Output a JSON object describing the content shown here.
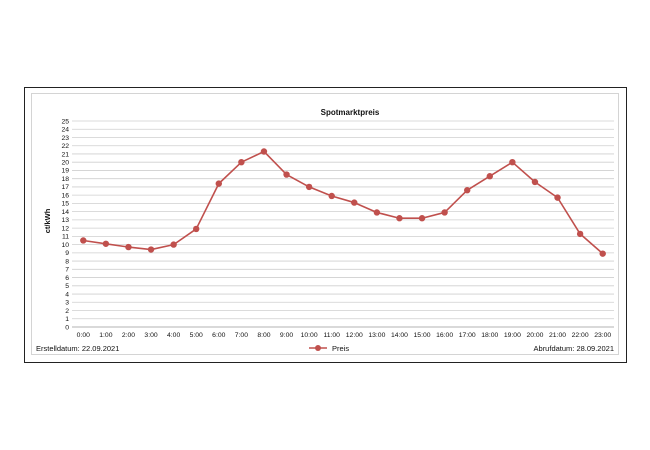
{
  "footer": {
    "created": "Erstelldatum: 22.09.2021",
    "retrieved": "Abrufdatum: 28.09.2021"
  },
  "chart_data": {
    "type": "line",
    "title": "Spotmarktpreis",
    "xlabel": "",
    "ylabel": "ct/kWh",
    "ylim": [
      0,
      25
    ],
    "yticks": [
      0,
      1,
      2,
      3,
      4,
      5,
      6,
      7,
      8,
      9,
      10,
      11,
      12,
      13,
      14,
      15,
      16,
      17,
      18,
      19,
      20,
      21,
      22,
      23,
      24,
      25
    ],
    "grid": true,
    "legend_position": "bottom-center",
    "color": "#c0504d",
    "categories": [
      "0:00",
      "1:00",
      "2:00",
      "3:00",
      "4:00",
      "5:00",
      "6:00",
      "7:00",
      "8:00",
      "9:00",
      "10:00",
      "11:00",
      "12:00",
      "13:00",
      "14:00",
      "15:00",
      "16:00",
      "17:00",
      "18:00",
      "19:00",
      "20:00",
      "21:00",
      "22:00",
      "23:00"
    ],
    "series": [
      {
        "name": "Preis",
        "values": [
          10.5,
          10.1,
          9.7,
          9.4,
          10.0,
          11.9,
          17.4,
          20.0,
          21.3,
          18.5,
          17.0,
          15.9,
          15.1,
          13.9,
          13.2,
          13.2,
          13.9,
          16.6,
          18.3,
          20.0,
          17.6,
          15.7,
          11.3,
          8.9
        ]
      }
    ]
  }
}
